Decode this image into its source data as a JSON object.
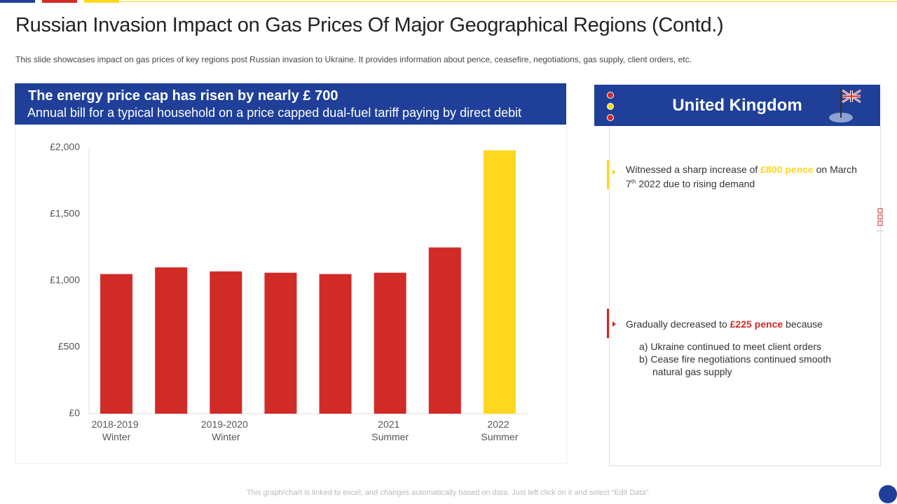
{
  "title": "Russian Invasion Impact on Gas Prices Of Major Geographical Regions (Contd.)",
  "subtitle": "This slide showcases impact on gas prices of key regions post Russian invasion to Ukraine. It provides information about pence, ceasefire, negotiations, gas supply, client orders, etc.",
  "banner": {
    "heading": "The energy price cap has risen by nearly £ 700",
    "text": "Annual bill for a typical household on a price capped dual-fuel tariff paying by direct debit"
  },
  "chart_data": {
    "type": "bar",
    "categories": [
      "2018-2019 Winter",
      null,
      "2019-2020 Winter",
      null,
      null,
      "2021 Summer",
      null,
      "2022 Summer"
    ],
    "values": [
      1050,
      1100,
      1070,
      1060,
      1050,
      1060,
      1250,
      1980
    ],
    "colors": [
      "#d12b27",
      "#d12b27",
      "#d12b27",
      "#d12b27",
      "#d12b27",
      "#d12b27",
      "#d12b27",
      "#fdd81f"
    ],
    "ylim": [
      0,
      2000
    ],
    "yticks": [
      {
        "value": 0,
        "label": "£0"
      },
      {
        "value": 500,
        "label": "£500"
      },
      {
        "value": 1000,
        "label": "£1,000"
      },
      {
        "value": 1500,
        "label": "£1,500"
      },
      {
        "value": 2000,
        "label": "£2,000"
      }
    ],
    "grid": false
  },
  "panel": {
    "title": "United Kingdom",
    "point1": {
      "before": "Witnessed a sharp increase of ",
      "highlight": "£800 pence",
      "after": " on March 7",
      "sup": "th",
      "end": " 2022 due to rising demand"
    },
    "point2": {
      "before": "Gradually decreased to ",
      "highlight": "£225 pence",
      "after": " because",
      "items": [
        "a) Ukraine continued to meet client orders",
        "b) Cease fire negotiations continued smooth natural gas supply"
      ]
    }
  },
  "footer": "This graph/chart is linked to excel, and changes automatically based on data. Just left click on it and select “Edit Data”."
}
